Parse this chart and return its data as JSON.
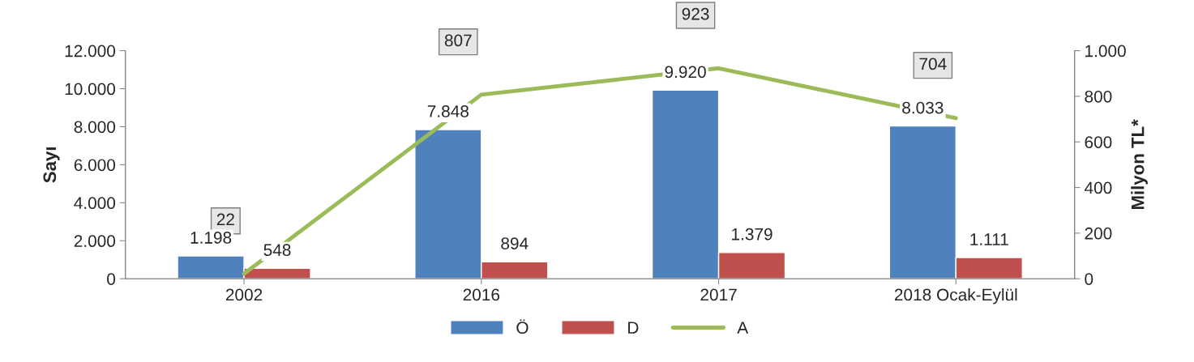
{
  "chart_data": {
    "type": "bar",
    "ylabel": "Sayı",
    "y2label": "Milyon TL*",
    "categories": [
      "2002",
      "2016",
      "2017",
      "2018 Ocak-Eylül"
    ],
    "series": [
      {
        "name": "Ö",
        "color": "#4f81bd",
        "values": [
          1198,
          7848,
          9920,
          8033
        ],
        "value_labels": [
          "1.198",
          "7.848",
          "9.920",
          "8.033"
        ]
      },
      {
        "name": "D",
        "color": "#c0504d",
        "values": [
          548,
          894,
          1379,
          1111
        ],
        "value_labels": [
          "548",
          "894",
          "1.379",
          "1.111"
        ]
      },
      {
        "name": "A",
        "type": "line",
        "axis": "y2",
        "color": "#9bbb59",
        "values": [
          22,
          807,
          923,
          704
        ],
        "value_labels": [
          "22",
          "807",
          "923",
          "704"
        ]
      }
    ],
    "ylim": [
      0,
      12000
    ],
    "yticks": [
      0,
      {
        "value": 2000,
        "label": "2.000"
      },
      {
        "value": 4000,
        "label": "4.000"
      },
      {
        "value": 6000,
        "label": "6.000"
      },
      {
        "value": 8000,
        "label": "8.000"
      },
      {
        "value": 10000,
        "label": "10.000"
      },
      {
        "value": 12000,
        "label": "12.000"
      }
    ],
    "y2lim": [
      0,
      1000
    ],
    "y2ticks": [
      0,
      200,
      400,
      600,
      800,
      {
        "value": 1000,
        "label": "1.000"
      }
    ],
    "legend": "bottom",
    "grid": false
  }
}
